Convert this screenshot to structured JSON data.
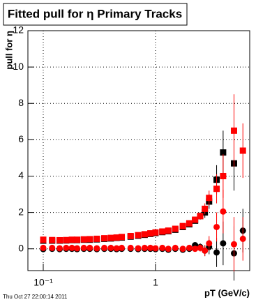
{
  "chart_data": {
    "type": "scatter",
    "title": "Fitted pull for η  Primary Tracks",
    "y_label": "pull for η",
    "x_label": "pT (GeV/c)",
    "footer": "Thu Oct 27 22:00:14 2011",
    "log_x": true,
    "grid": true,
    "xlim": [
      0.073,
      6.9
    ],
    "xticks": [
      {
        "value": 0.1,
        "label": "10⁻¹"
      },
      1
    ],
    "ylim": [
      -1.2,
      12
    ],
    "yticks": [
      0,
      2,
      4,
      6,
      8,
      10,
      12
    ],
    "x": [
      0.1,
      0.12,
      0.14,
      0.16,
      0.18,
      0.2,
      0.23,
      0.26,
      0.3,
      0.35,
      0.4,
      0.45,
      0.5,
      0.6,
      0.7,
      0.8,
      0.9,
      1.0,
      1.15,
      1.3,
      1.5,
      1.75,
      2.0,
      2.25,
      2.5,
      2.75,
      3.0,
      3.5,
      4.0,
      5.0,
      6.0
    ],
    "series": [
      {
        "name": "black squares",
        "color": "#000000",
        "marker": "square",
        "values": [
          0.45,
          0.45,
          0.45,
          0.46,
          0.48,
          0.48,
          0.5,
          0.5,
          0.52,
          0.55,
          0.57,
          0.6,
          0.62,
          0.67,
          0.72,
          0.77,
          0.82,
          0.87,
          0.92,
          0.97,
          1.05,
          1.2,
          1.35,
          1.55,
          1.8,
          2.0,
          2.6,
          3.8,
          5.3,
          4.7,
          null
        ],
        "errors": [
          0.05,
          0.05,
          0.05,
          0.05,
          0.05,
          0.05,
          0.05,
          0.05,
          0.05,
          0.05,
          0.05,
          0.05,
          0.05,
          0.05,
          0.05,
          0.05,
          0.05,
          0.05,
          0.05,
          0.05,
          0.05,
          0.08,
          0.1,
          0.15,
          0.2,
          0.3,
          0.4,
          0.8,
          1.2,
          1.5,
          null
        ]
      },
      {
        "name": "red squares",
        "color": "#ff0000",
        "marker": "square",
        "values": [
          0.5,
          0.48,
          0.47,
          0.48,
          0.5,
          0.5,
          0.52,
          0.53,
          0.55,
          0.58,
          0.6,
          0.62,
          0.65,
          0.7,
          0.75,
          0.8,
          0.85,
          0.9,
          0.95,
          1.0,
          1.1,
          1.25,
          1.4,
          1.6,
          1.8,
          2.2,
          2.8,
          3.3,
          4.0,
          6.5,
          5.4
        ],
        "errors": [
          0.05,
          0.05,
          0.05,
          0.05,
          0.05,
          0.05,
          0.05,
          0.05,
          0.05,
          0.05,
          0.05,
          0.05,
          0.05,
          0.05,
          0.05,
          0.05,
          0.05,
          0.05,
          0.05,
          0.05,
          0.05,
          0.08,
          0.1,
          0.15,
          0.2,
          0.3,
          0.4,
          0.8,
          1.2,
          2.0,
          1.5
        ]
      },
      {
        "name": "black circles",
        "color": "#000000",
        "marker": "circle",
        "values": [
          -0.02,
          0.0,
          -0.02,
          0.0,
          0.0,
          -0.02,
          0.0,
          0.0,
          -0.02,
          0.0,
          0.0,
          -0.02,
          0.0,
          0.0,
          -0.02,
          0.0,
          0.0,
          -0.02,
          0.0,
          -0.05,
          0.0,
          -0.05,
          0.0,
          0.2,
          0.1,
          -0.1,
          0.1,
          -0.2,
          0.3,
          -0.25,
          1.0
        ],
        "errors": [
          0.05,
          0.05,
          0.05,
          0.05,
          0.05,
          0.05,
          0.05,
          0.05,
          0.05,
          0.05,
          0.05,
          0.05,
          0.05,
          0.05,
          0.05,
          0.05,
          0.05,
          0.05,
          0.05,
          0.05,
          0.05,
          0.08,
          0.1,
          0.15,
          0.2,
          0.3,
          0.4,
          0.8,
          1.2,
          1.5,
          1.2
        ]
      },
      {
        "name": "red circles",
        "color": "#ff0000",
        "marker": "circle",
        "values": [
          0.05,
          0.05,
          0.03,
          0.05,
          0.05,
          0.03,
          0.05,
          0.05,
          0.03,
          0.05,
          0.05,
          0.03,
          0.05,
          0.05,
          0.03,
          0.05,
          0.05,
          0.03,
          0.05,
          0.0,
          0.05,
          0.0,
          0.05,
          0.0,
          0.05,
          -0.1,
          0.3,
          1.2,
          2.05,
          0.25,
          0.55
        ],
        "errors": [
          0.05,
          0.05,
          0.05,
          0.05,
          0.05,
          0.05,
          0.05,
          0.05,
          0.05,
          0.05,
          0.05,
          0.05,
          0.05,
          0.05,
          0.05,
          0.05,
          0.05,
          0.05,
          0.05,
          0.05,
          0.05,
          0.08,
          0.1,
          0.15,
          0.2,
          0.3,
          0.4,
          0.8,
          1.2,
          1.5,
          1.2
        ]
      }
    ]
  }
}
